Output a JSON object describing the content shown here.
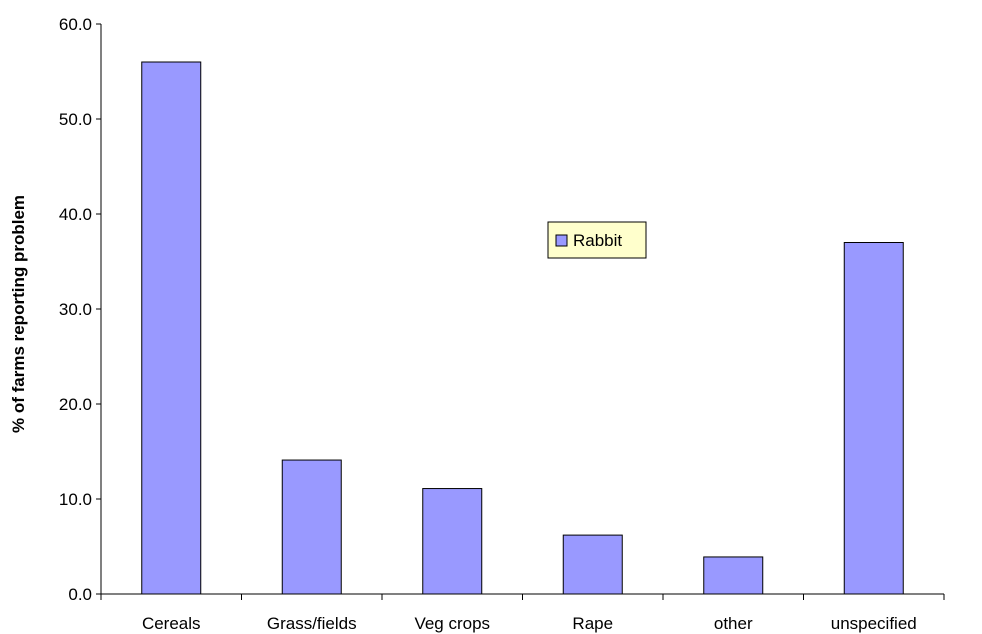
{
  "chart_data": {
    "type": "bar",
    "categories": [
      "Cereals",
      "Grass/fields",
      "Veg crops",
      "Rape",
      "other",
      "unspecified"
    ],
    "series": [
      {
        "name": "Rabbit",
        "values": [
          56.0,
          14.1,
          11.1,
          6.2,
          3.9,
          37.0
        ],
        "color": "#9999ff"
      }
    ],
    "title": "",
    "xlabel": "",
    "ylabel": "% of farms reporting problem",
    "ylim": [
      0,
      60
    ],
    "yticks": [
      "0.0",
      "10.0",
      "20.0",
      "30.0",
      "40.0",
      "50.0",
      "60.0"
    ],
    "grid": false,
    "legend": {
      "placement": "center-right",
      "background": "#ffffcc"
    }
  }
}
